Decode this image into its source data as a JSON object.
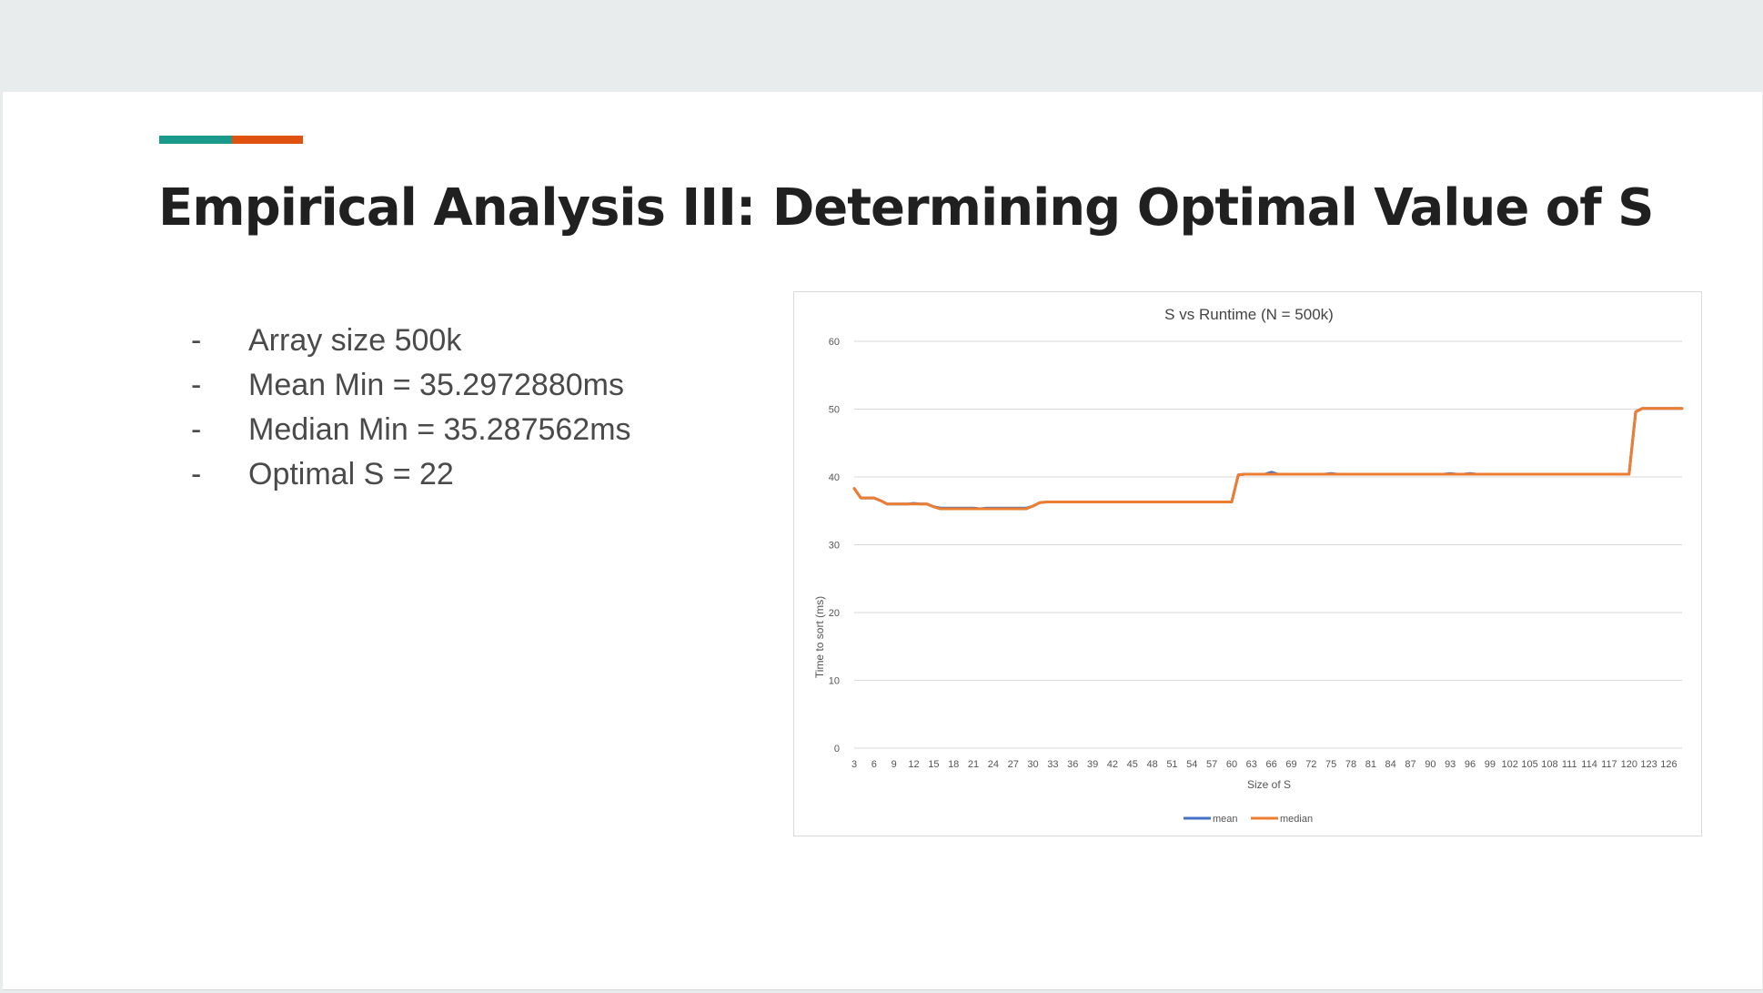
{
  "slide": {
    "title": "Empirical Analysis III: Determining Optimal Value of S",
    "accent_colors": [
      "#1a9a8a",
      "#e0520f"
    ],
    "bullets": [
      {
        "marker": "-",
        "text": "Array size 500k"
      },
      {
        "marker": "-",
        "text": "Mean Min = 35.2972880ms"
      },
      {
        "marker": "-",
        "text": "Median Min = 35.287562ms"
      },
      {
        "marker": "-",
        "text": "Optimal S = 22"
      }
    ]
  },
  "chart_data": {
    "type": "line",
    "title": "S vs Runtime (N = 500k)",
    "xlabel": "Size of S",
    "ylabel": "Time  to sort (ms)",
    "ylim": [
      0,
      60
    ],
    "yticks": [
      0,
      10,
      20,
      30,
      40,
      50,
      60
    ],
    "grid": true,
    "legend_position": "bottom",
    "x": [
      3,
      4,
      5,
      6,
      7,
      8,
      9,
      10,
      11,
      12,
      13,
      14,
      15,
      16,
      17,
      18,
      19,
      20,
      21,
      22,
      23,
      24,
      25,
      26,
      27,
      28,
      29,
      30,
      31,
      32,
      33,
      34,
      35,
      36,
      37,
      38,
      39,
      40,
      41,
      42,
      43,
      44,
      45,
      46,
      47,
      48,
      49,
      50,
      51,
      52,
      53,
      54,
      55,
      56,
      57,
      58,
      59,
      60,
      61,
      62,
      63,
      64,
      65,
      66,
      67,
      68,
      69,
      70,
      71,
      72,
      73,
      74,
      75,
      76,
      77,
      78,
      79,
      80,
      81,
      82,
      83,
      84,
      85,
      86,
      87,
      88,
      89,
      90,
      91,
      92,
      93,
      94,
      95,
      96,
      97,
      98,
      99,
      100,
      101,
      102,
      103,
      104,
      105,
      106,
      107,
      108,
      109,
      110,
      111,
      112,
      113,
      114,
      115,
      116,
      117,
      118,
      119,
      120,
      121,
      122,
      123,
      124,
      125,
      126,
      127,
      128
    ],
    "xtick_labels": [
      "3",
      "6",
      "9",
      "12",
      "15",
      "18",
      "21",
      "24",
      "27",
      "30",
      "33",
      "36",
      "39",
      "42",
      "45",
      "48",
      "51",
      "54",
      "57",
      "60",
      "63",
      "66",
      "69",
      "72",
      "75",
      "78",
      "81",
      "84",
      "87",
      "90",
      "93",
      "96",
      "99",
      "102",
      "105",
      "108",
      "111",
      "114",
      "117",
      "120",
      "123",
      "126"
    ],
    "series": [
      {
        "name": "mean",
        "color": "#4472c4",
        "values": [
          38.3,
          36.9,
          36.9,
          36.9,
          36.5,
          36.0,
          36.0,
          36.0,
          36.0,
          36.1,
          36.0,
          36.0,
          35.6,
          35.4,
          35.4,
          35.4,
          35.4,
          35.4,
          35.4,
          35.3,
          35.4,
          35.4,
          35.4,
          35.4,
          35.4,
          35.4,
          35.4,
          35.7,
          36.2,
          36.3,
          36.3,
          36.3,
          36.3,
          36.3,
          36.3,
          36.3,
          36.3,
          36.3,
          36.3,
          36.3,
          36.3,
          36.3,
          36.3,
          36.3,
          36.3,
          36.3,
          36.3,
          36.3,
          36.3,
          36.3,
          36.3,
          36.3,
          36.3,
          36.3,
          36.3,
          36.3,
          36.3,
          36.3,
          40.3,
          40.4,
          40.4,
          40.4,
          40.4,
          40.7,
          40.4,
          40.4,
          40.4,
          40.4,
          40.4,
          40.4,
          40.4,
          40.4,
          40.5,
          40.4,
          40.4,
          40.4,
          40.4,
          40.4,
          40.4,
          40.4,
          40.4,
          40.4,
          40.4,
          40.4,
          40.4,
          40.4,
          40.4,
          40.4,
          40.4,
          40.4,
          40.5,
          40.4,
          40.4,
          40.5,
          40.4,
          40.4,
          40.4,
          40.4,
          40.4,
          40.4,
          40.4,
          40.4,
          40.4,
          40.4,
          40.4,
          40.4,
          40.4,
          40.4,
          40.4,
          40.4,
          40.4,
          40.4,
          40.4,
          40.4,
          40.4,
          40.4,
          40.4,
          40.4,
          49.6,
          50.1,
          50.1,
          50.1,
          50.1,
          50.1,
          50.1,
          50.1
        ]
      },
      {
        "name": "median",
        "color": "#ed7d31",
        "values": [
          38.3,
          36.9,
          36.9,
          36.9,
          36.5,
          36.0,
          36.0,
          36.0,
          36.0,
          36.0,
          36.0,
          36.0,
          35.6,
          35.3,
          35.3,
          35.3,
          35.3,
          35.3,
          35.3,
          35.3,
          35.3,
          35.3,
          35.3,
          35.3,
          35.3,
          35.3,
          35.3,
          35.7,
          36.2,
          36.3,
          36.3,
          36.3,
          36.3,
          36.3,
          36.3,
          36.3,
          36.3,
          36.3,
          36.3,
          36.3,
          36.3,
          36.3,
          36.3,
          36.3,
          36.3,
          36.3,
          36.3,
          36.3,
          36.3,
          36.3,
          36.3,
          36.3,
          36.3,
          36.3,
          36.3,
          36.3,
          36.3,
          36.3,
          40.3,
          40.4,
          40.4,
          40.4,
          40.4,
          40.4,
          40.4,
          40.4,
          40.4,
          40.4,
          40.4,
          40.4,
          40.4,
          40.4,
          40.4,
          40.4,
          40.4,
          40.4,
          40.4,
          40.4,
          40.4,
          40.4,
          40.4,
          40.4,
          40.4,
          40.4,
          40.4,
          40.4,
          40.4,
          40.4,
          40.4,
          40.4,
          40.4,
          40.4,
          40.4,
          40.4,
          40.4,
          40.4,
          40.4,
          40.4,
          40.4,
          40.4,
          40.4,
          40.4,
          40.4,
          40.4,
          40.4,
          40.4,
          40.4,
          40.4,
          40.4,
          40.4,
          40.4,
          40.4,
          40.4,
          40.4,
          40.4,
          40.4,
          40.4,
          40.4,
          49.6,
          50.1,
          50.1,
          50.1,
          50.1,
          50.1,
          50.1,
          50.1
        ]
      }
    ]
  }
}
